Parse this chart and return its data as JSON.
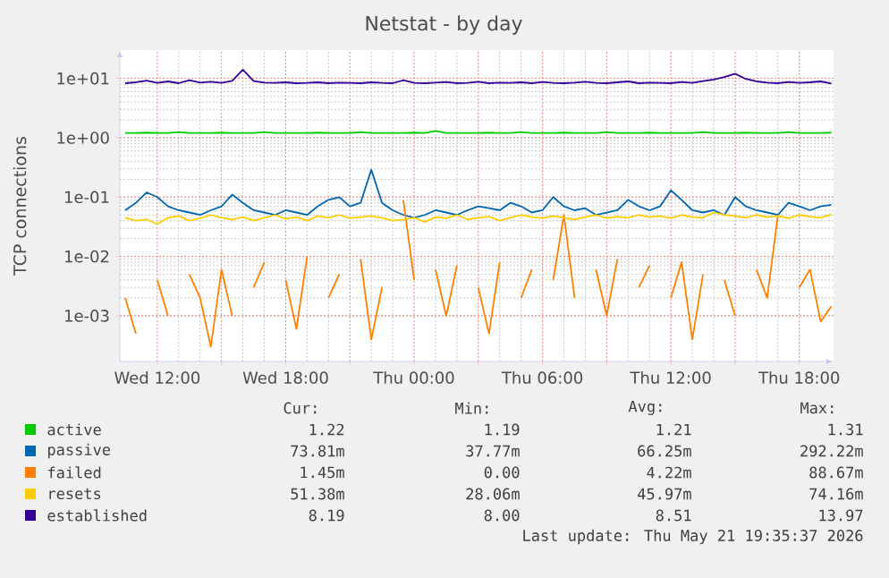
{
  "chart_data": {
    "type": "line",
    "title": "Netstat - by day",
    "ylabel": "TCP connections",
    "log": "y",
    "grid": true,
    "legend": "bottom",
    "xlim": [
      "2026-05-20T10:15",
      "2026-05-21T19:36"
    ],
    "ylim": [
      0.00017,
      30
    ],
    "xticks": [
      {
        "value": "2026-05-20T12:00",
        "label": "Wed 12:00"
      },
      {
        "value": "2026-05-20T15:00",
        "label": null
      },
      {
        "value": "2026-05-20T18:00",
        "label": "Wed 18:00"
      },
      {
        "value": "2026-05-20T21:00",
        "label": null
      },
      {
        "value": "2026-05-21T00:00",
        "label": "Thu 00:00"
      },
      {
        "value": "2026-05-21T03:00",
        "label": null
      },
      {
        "value": "2026-05-21T06:00",
        "label": "Thu 06:00"
      },
      {
        "value": "2026-05-21T09:00",
        "label": null
      },
      {
        "value": "2026-05-21T12:00",
        "label": "Thu 12:00"
      },
      {
        "value": "2026-05-21T15:00",
        "label": null
      },
      {
        "value": "2026-05-21T18:00",
        "label": "Thu 18:00"
      }
    ],
    "yticks": [
      {
        "value": 0.001,
        "label": "1e-03"
      },
      {
        "value": 0.01,
        "label": "1e-02"
      },
      {
        "value": 0.1,
        "label": "1e-01"
      },
      {
        "value": 1,
        "label": "1e+00"
      },
      {
        "value": 10,
        "label": "1e+01"
      }
    ],
    "x": [
      "2026-05-20T10:30",
      "2026-05-20T11:00",
      "2026-05-20T11:30",
      "2026-05-20T12:00",
      "2026-05-20T12:30",
      "2026-05-20T13:00",
      "2026-05-20T13:30",
      "2026-05-20T14:00",
      "2026-05-20T14:30",
      "2026-05-20T15:00",
      "2026-05-20T15:30",
      "2026-05-20T16:00",
      "2026-05-20T16:30",
      "2026-05-20T17:00",
      "2026-05-20T17:30",
      "2026-05-20T18:00",
      "2026-05-20T18:30",
      "2026-05-20T19:00",
      "2026-05-20T19:30",
      "2026-05-20T20:00",
      "2026-05-20T20:30",
      "2026-05-20T21:00",
      "2026-05-20T21:30",
      "2026-05-20T22:00",
      "2026-05-20T22:30",
      "2026-05-20T23:00",
      "2026-05-20T23:30",
      "2026-05-21T00:00",
      "2026-05-21T00:30",
      "2026-05-21T01:00",
      "2026-05-21T01:30",
      "2026-05-21T02:00",
      "2026-05-21T02:30",
      "2026-05-21T03:00",
      "2026-05-21T03:30",
      "2026-05-21T04:00",
      "2026-05-21T04:30",
      "2026-05-21T05:00",
      "2026-05-21T05:30",
      "2026-05-21T06:00",
      "2026-05-21T06:30",
      "2026-05-21T07:00",
      "2026-05-21T07:30",
      "2026-05-21T08:00",
      "2026-05-21T08:30",
      "2026-05-21T09:00",
      "2026-05-21T09:30",
      "2026-05-21T10:00",
      "2026-05-21T10:30",
      "2026-05-21T11:00",
      "2026-05-21T11:30",
      "2026-05-21T12:00",
      "2026-05-21T12:30",
      "2026-05-21T13:00",
      "2026-05-21T13:30",
      "2026-05-21T14:00",
      "2026-05-21T14:30",
      "2026-05-21T15:00",
      "2026-05-21T15:30",
      "2026-05-21T16:00",
      "2026-05-21T16:30",
      "2026-05-21T17:00",
      "2026-05-21T17:30",
      "2026-05-21T18:00",
      "2026-05-21T18:30",
      "2026-05-21T19:00",
      "2026-05-21T19:30"
    ],
    "series": [
      {
        "name": "active",
        "color": "#00cc00",
        "values": [
          1.2,
          1.2,
          1.22,
          1.2,
          1.2,
          1.25,
          1.2,
          1.2,
          1.2,
          1.22,
          1.2,
          1.2,
          1.2,
          1.25,
          1.2,
          1.2,
          1.2,
          1.2,
          1.22,
          1.2,
          1.2,
          1.2,
          1.25,
          1.2,
          1.2,
          1.2,
          1.2,
          1.22,
          1.2,
          1.3,
          1.2,
          1.2,
          1.2,
          1.2,
          1.22,
          1.2,
          1.2,
          1.25,
          1.2,
          1.2,
          1.2,
          1.22,
          1.2,
          1.2,
          1.2,
          1.25,
          1.2,
          1.2,
          1.2,
          1.22,
          1.2,
          1.2,
          1.2,
          1.2,
          1.25,
          1.2,
          1.2,
          1.2,
          1.22,
          1.2,
          1.2,
          1.2,
          1.25,
          1.2,
          1.2,
          1.2,
          1.22
        ]
      },
      {
        "name": "passive",
        "color": "#0066b3",
        "values": [
          0.06,
          0.08,
          0.12,
          0.1,
          0.07,
          0.06,
          0.055,
          0.05,
          0.06,
          0.07,
          0.11,
          0.08,
          0.06,
          0.055,
          0.05,
          0.06,
          0.055,
          0.05,
          0.07,
          0.09,
          0.1,
          0.07,
          0.08,
          0.29,
          0.08,
          0.06,
          0.05,
          0.045,
          0.05,
          0.06,
          0.055,
          0.05,
          0.06,
          0.07,
          0.065,
          0.06,
          0.08,
          0.07,
          0.055,
          0.06,
          0.1,
          0.07,
          0.06,
          0.065,
          0.05,
          0.055,
          0.06,
          0.09,
          0.07,
          0.06,
          0.07,
          0.13,
          0.09,
          0.06,
          0.055,
          0.06,
          0.05,
          0.1,
          0.07,
          0.06,
          0.055,
          0.05,
          0.08,
          0.07,
          0.06,
          0.07,
          0.074
        ]
      },
      {
        "name": "failed",
        "color": "#ff8000",
        "values": [
          0.002,
          0.0005,
          null,
          0.004,
          0.001,
          null,
          0.005,
          0.002,
          0.0003,
          0.006,
          0.001,
          null,
          0.003,
          0.008,
          null,
          0.004,
          0.0006,
          0.01,
          null,
          0.002,
          0.005,
          null,
          0.009,
          0.0004,
          0.003,
          null,
          0.088,
          0.004,
          null,
          0.006,
          0.001,
          0.007,
          null,
          0.003,
          0.0005,
          0.008,
          null,
          0.002,
          0.006,
          null,
          0.004,
          0.05,
          0.002,
          null,
          0.006,
          0.001,
          0.009,
          null,
          0.003,
          0.007,
          null,
          0.002,
          0.008,
          0.0004,
          0.005,
          null,
          0.004,
          0.001,
          null,
          0.006,
          0.002,
          0.05,
          null,
          0.003,
          0.006,
          0.0008,
          0.00145
        ]
      },
      {
        "name": "resets",
        "color": "#ffcc00",
        "values": [
          0.045,
          0.04,
          0.042,
          0.035,
          0.045,
          0.048,
          0.04,
          0.044,
          0.05,
          0.045,
          0.042,
          0.046,
          0.04,
          0.045,
          0.05,
          0.043,
          0.046,
          0.04,
          0.048,
          0.045,
          0.05,
          0.044,
          0.046,
          0.048,
          0.045,
          0.04,
          0.042,
          0.045,
          0.038,
          0.046,
          0.044,
          0.05,
          0.042,
          0.045,
          0.047,
          0.04,
          0.045,
          0.05,
          0.046,
          0.044,
          0.048,
          0.045,
          0.042,
          0.046,
          0.05,
          0.044,
          0.047,
          0.045,
          0.05,
          0.046,
          0.048,
          0.044,
          0.05,
          0.046,
          0.045,
          0.055,
          0.05,
          0.048,
          0.045,
          0.05,
          0.046,
          0.048,
          0.044,
          0.05,
          0.047,
          0.045,
          0.051
        ]
      },
      {
        "name": "established",
        "color": "#330099",
        "values": [
          8.3,
          8.6,
          9.2,
          8.4,
          8.9,
          8.3,
          9.3,
          8.5,
          8.8,
          8.4,
          9.1,
          14.0,
          9.0,
          8.5,
          8.4,
          8.6,
          8.3,
          8.4,
          8.6,
          8.3,
          8.5,
          8.4,
          8.3,
          8.6,
          8.4,
          8.3,
          9.3,
          8.4,
          8.3,
          8.5,
          8.7,
          8.3,
          8.4,
          8.8,
          8.3,
          8.5,
          8.4,
          8.6,
          8.3,
          8.7,
          8.4,
          8.3,
          8.5,
          8.8,
          8.4,
          8.3,
          8.6,
          8.9,
          8.3,
          8.5,
          8.4,
          8.3,
          8.7,
          8.4,
          9.0,
          9.6,
          10.5,
          12.0,
          9.8,
          8.9,
          8.5,
          8.3,
          8.7,
          8.4,
          8.6,
          8.9,
          8.19
        ]
      }
    ],
    "annotations": [
      "Cur:",
      "Min:",
      "Avg:",
      "Max:",
      "1.22",
      "1.19",
      "1.21",
      "1.31",
      "73.81m",
      "37.77m",
      "66.25m",
      "292.22m",
      "1.45m",
      "0.00",
      "4.22m",
      "88.67m",
      "51.38m",
      "28.06m",
      "45.97m",
      "74.16m",
      "8.19",
      "8.00",
      "8.51",
      "13.97",
      "Last update: Thu May 21 19:35:37 2026"
    ]
  }
}
